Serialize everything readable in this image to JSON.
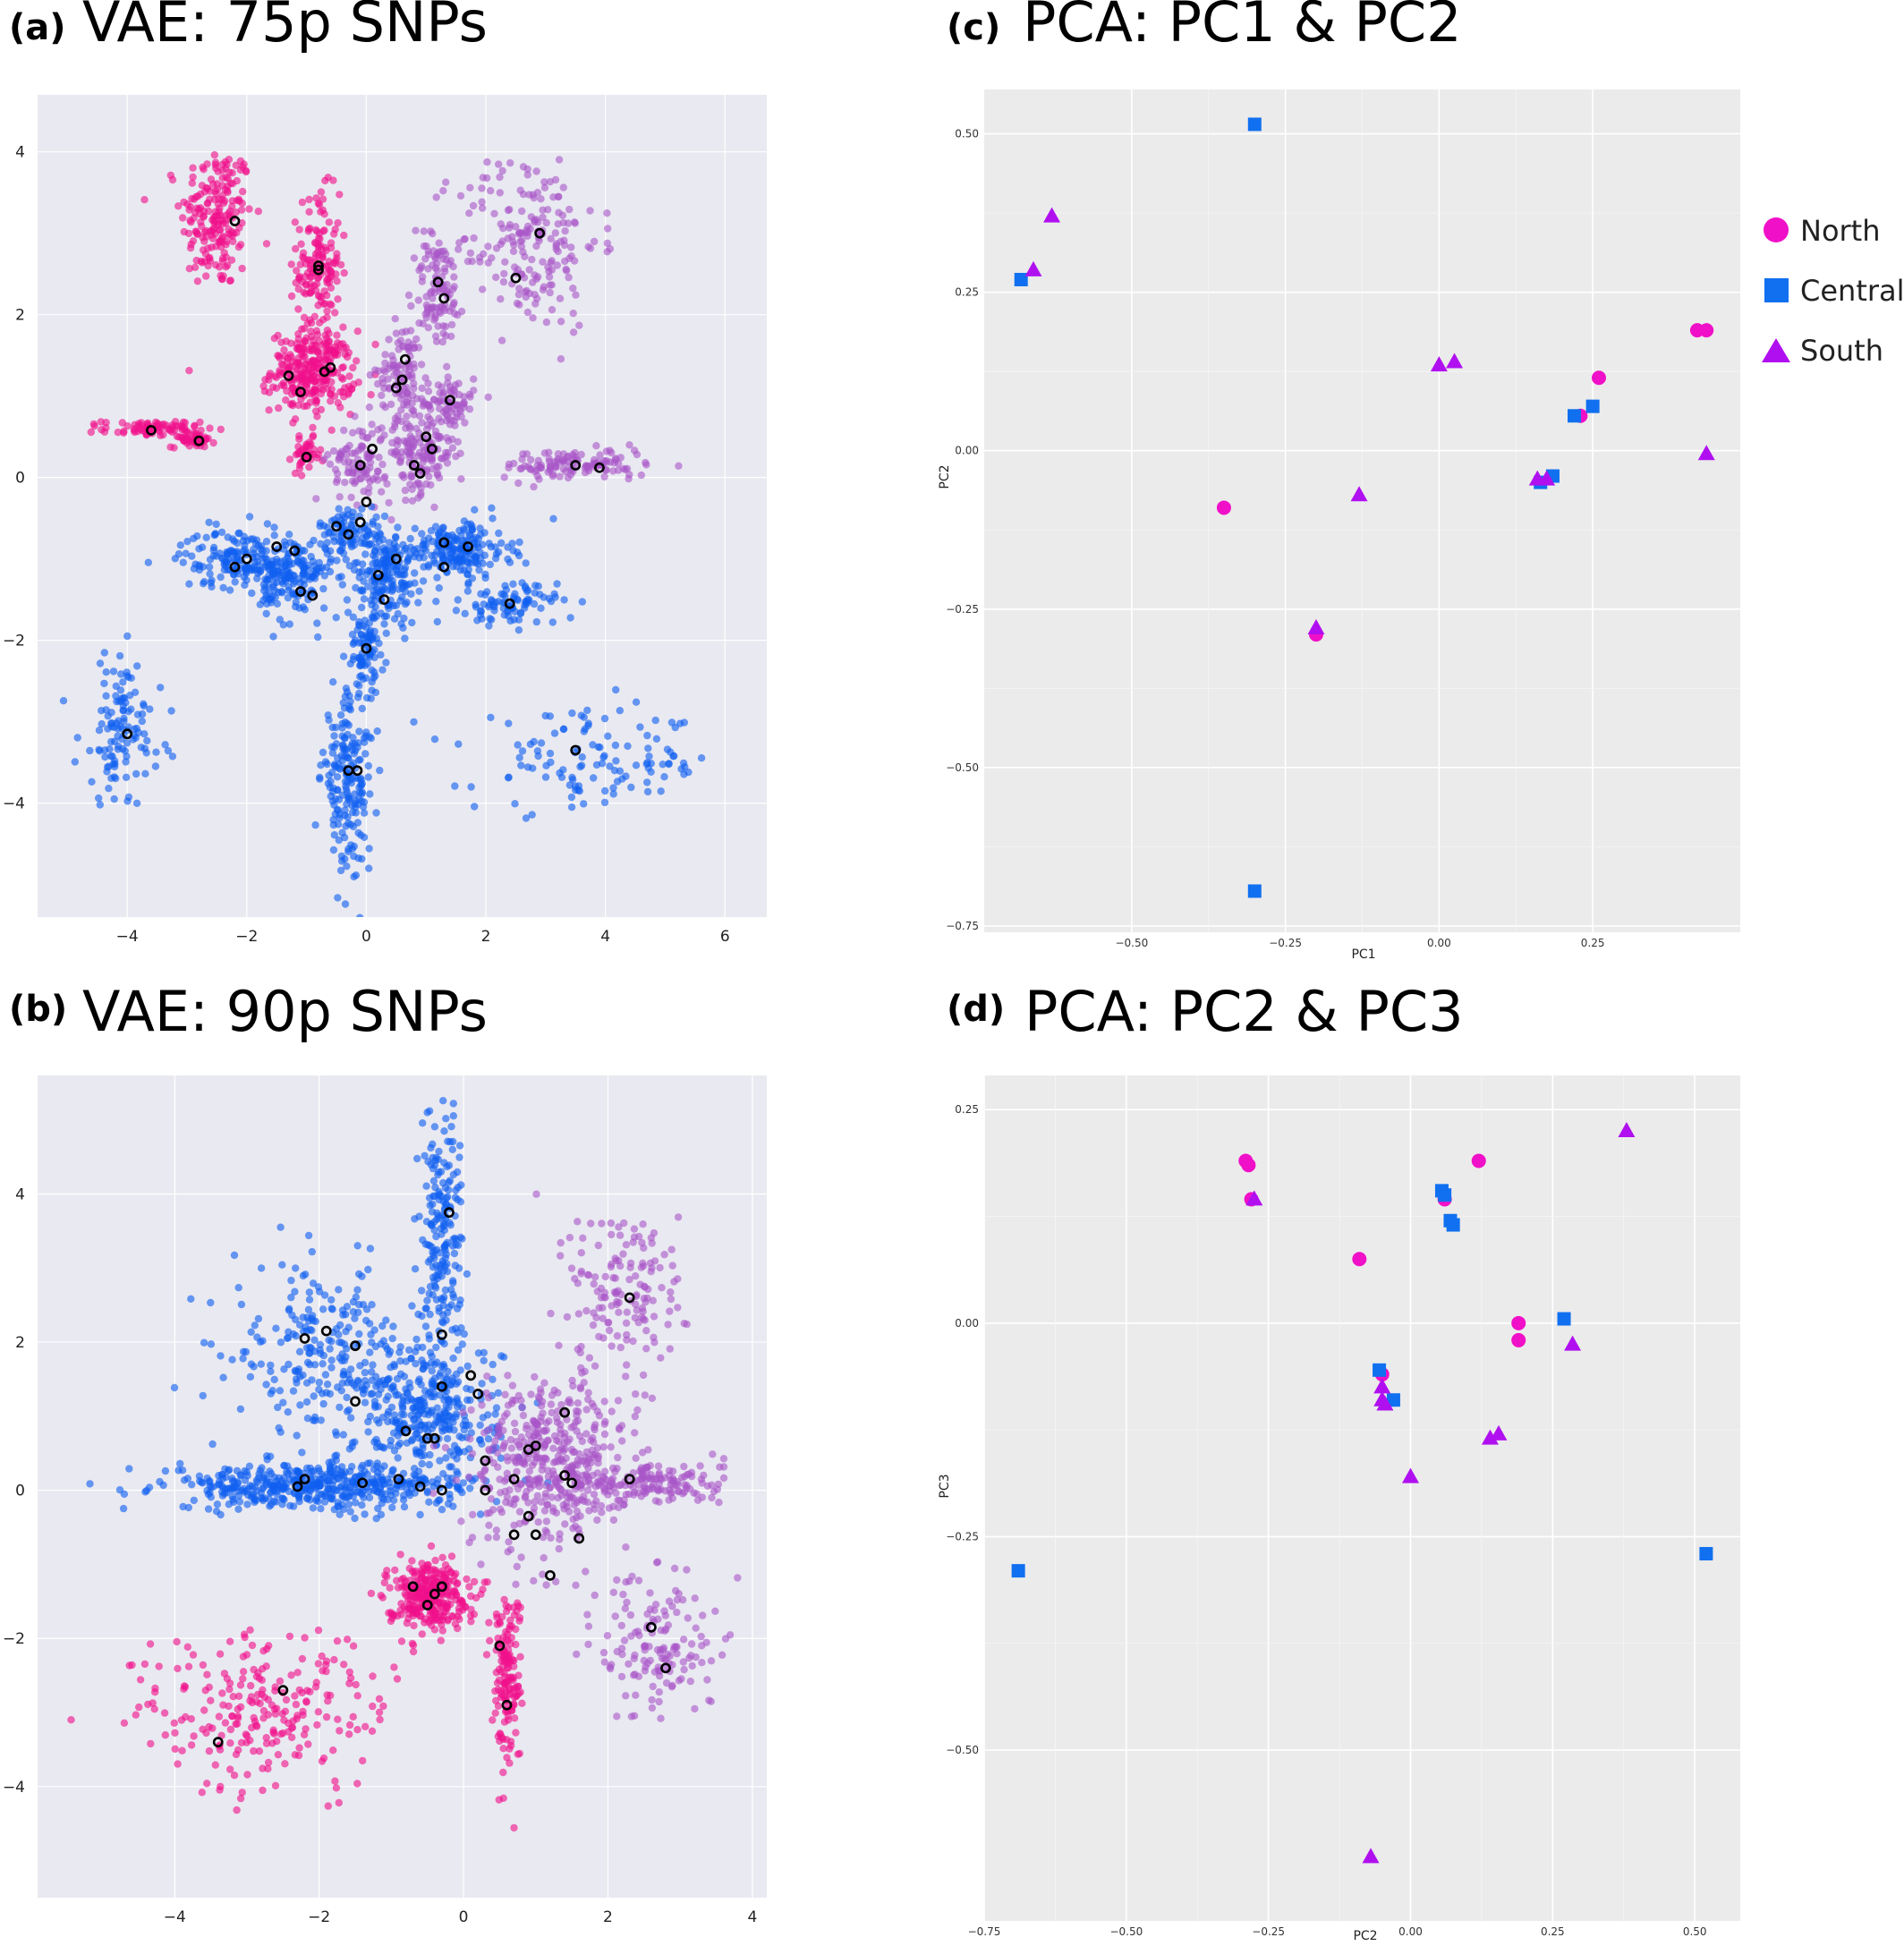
{
  "colors": {
    "north": "#f0108a",
    "central": "#1060f0",
    "south": "#a855c8",
    "north_pca": "#f010c8",
    "central_pca": "#1070f0",
    "south_pca": "#b010f0",
    "panel_bg": "#e9e9f1",
    "pca_bg": "#ebebeb",
    "grid": "#ffffff"
  },
  "legend": {
    "items": [
      {
        "label": "North",
        "shape": "circle"
      },
      {
        "label": "Central",
        "shape": "square"
      },
      {
        "label": "South",
        "shape": "triangle"
      }
    ]
  },
  "panels": {
    "a": {
      "letter": "(a)",
      "title": "VAE: 75p SNPs"
    },
    "b": {
      "letter": "(b)",
      "title": "VAE: 90p SNPs"
    },
    "c": {
      "letter": "(c)",
      "title": "PCA: PC1 & PC2",
      "xlabel": "PC1",
      "ylabel": "PC2"
    },
    "d": {
      "letter": "(d)",
      "title": "PCA: PC2 & PC3",
      "xlabel": "PC2",
      "ylabel": "PC3"
    }
  },
  "chart_data": [
    {
      "panel": "a",
      "type": "scatter",
      "title": "VAE: 75p SNPs",
      "xlim": [
        -5.5,
        6.7
      ],
      "ylim": [
        -5.4,
        4.7
      ],
      "xticks": [
        -4,
        -2,
        0,
        2,
        4,
        6
      ],
      "yticks": [
        -4,
        -2,
        0,
        2,
        4
      ],
      "grid": true,
      "clusters": [
        {
          "group": "north",
          "cx": -2.5,
          "cy": 3.2,
          "sx": 0.3,
          "sy": 0.45,
          "n": 200
        },
        {
          "group": "north",
          "cx": -0.8,
          "cy": 2.6,
          "sx": 0.18,
          "sy": 0.45,
          "n": 150
        },
        {
          "group": "north",
          "cx": -0.9,
          "cy": 1.3,
          "sx": 0.35,
          "sy": 0.25,
          "n": 280
        },
        {
          "group": "north",
          "cx": -3.6,
          "cy": 0.6,
          "sx": 0.4,
          "sy": 0.05,
          "n": 80
        },
        {
          "group": "north",
          "cx": -2.9,
          "cy": 0.47,
          "sx": 0.18,
          "sy": 0.05,
          "n": 50
        },
        {
          "group": "north",
          "cx": -1.0,
          "cy": 0.27,
          "sx": 0.12,
          "sy": 0.1,
          "n": 40
        },
        {
          "group": "south",
          "cx": 2.7,
          "cy": 2.9,
          "sx": 0.6,
          "sy": 0.55,
          "n": 200
        },
        {
          "group": "south",
          "cx": 1.2,
          "cy": 2.3,
          "sx": 0.2,
          "sy": 0.35,
          "n": 100
        },
        {
          "group": "south",
          "cx": 0.6,
          "cy": 1.3,
          "sx": 0.2,
          "sy": 0.3,
          "n": 100
        },
        {
          "group": "south",
          "cx": 1.4,
          "cy": 0.9,
          "sx": 0.2,
          "sy": 0.2,
          "n": 80
        },
        {
          "group": "south",
          "cx": 0.9,
          "cy": 0.3,
          "sx": 0.3,
          "sy": 0.25,
          "n": 140
        },
        {
          "group": "south",
          "cx": -0.1,
          "cy": 0.2,
          "sx": 0.25,
          "sy": 0.25,
          "n": 100
        },
        {
          "group": "south",
          "cx": 3.5,
          "cy": 0.15,
          "sx": 0.6,
          "sy": 0.1,
          "n": 120
        },
        {
          "group": "central",
          "cx": -2.0,
          "cy": -1.0,
          "sx": 0.55,
          "sy": 0.18,
          "n": 200
        },
        {
          "group": "central",
          "cx": -1.2,
          "cy": -1.3,
          "sx": 0.3,
          "sy": 0.25,
          "n": 120
        },
        {
          "group": "central",
          "cx": -0.3,
          "cy": -0.65,
          "sx": 0.25,
          "sy": 0.15,
          "n": 80
        },
        {
          "group": "central",
          "cx": 0.3,
          "cy": -1.2,
          "sx": 0.3,
          "sy": 0.3,
          "n": 180
        },
        {
          "group": "central",
          "cx": 1.5,
          "cy": -0.9,
          "sx": 0.45,
          "sy": 0.18,
          "n": 200
        },
        {
          "group": "central",
          "cx": 2.4,
          "cy": -1.55,
          "sx": 0.4,
          "sy": 0.13,
          "n": 90
        },
        {
          "group": "central",
          "cx": 0.0,
          "cy": -2.1,
          "sx": 0.15,
          "sy": 0.25,
          "n": 80
        },
        {
          "group": "central",
          "cx": -4.1,
          "cy": -3.1,
          "sx": 0.35,
          "sy": 0.45,
          "n": 120
        },
        {
          "group": "central",
          "cx": -0.3,
          "cy": -3.7,
          "sx": 0.22,
          "sy": 0.55,
          "n": 200
        },
        {
          "group": "central",
          "cx": 3.8,
          "cy": -3.5,
          "sx": 1.0,
          "sy": 0.3,
          "n": 120
        }
      ],
      "centroids": [
        [
          -2.2,
          3.15
        ],
        [
          -0.8,
          2.6
        ],
        [
          -0.8,
          2.55
        ],
        [
          -1.3,
          1.25
        ],
        [
          -0.6,
          1.35
        ],
        [
          -1.1,
          1.05
        ],
        [
          -0.7,
          1.3
        ],
        [
          -3.6,
          0.58
        ],
        [
          -2.8,
          0.45
        ],
        [
          -1.0,
          0.25
        ],
        [
          2.9,
          3.0
        ],
        [
          2.5,
          2.45
        ],
        [
          1.2,
          2.4
        ],
        [
          1.3,
          2.2
        ],
        [
          0.65,
          1.45
        ],
        [
          0.6,
          1.2
        ],
        [
          0.5,
          1.1
        ],
        [
          1.4,
          0.95
        ],
        [
          1.0,
          0.5
        ],
        [
          1.1,
          0.35
        ],
        [
          0.8,
          0.15
        ],
        [
          0.9,
          0.05
        ],
        [
          -0.1,
          0.15
        ],
        [
          0.1,
          0.35
        ],
        [
          3.5,
          0.15
        ],
        [
          3.9,
          0.12
        ],
        [
          0.0,
          -0.3
        ],
        [
          -0.5,
          -0.6
        ],
        [
          -0.3,
          -0.7
        ],
        [
          -0.1,
          -0.55
        ],
        [
          -1.5,
          -0.85
        ],
        [
          -1.2,
          -0.9
        ],
        [
          -2.2,
          -1.1
        ],
        [
          -2.0,
          -1.0
        ],
        [
          -1.1,
          -1.4
        ],
        [
          -0.9,
          -1.45
        ],
        [
          0.2,
          -1.2
        ],
        [
          0.5,
          -1.0
        ],
        [
          0.3,
          -1.5
        ],
        [
          1.3,
          -0.8
        ],
        [
          1.7,
          -0.85
        ],
        [
          1.3,
          -1.1
        ],
        [
          2.4,
          -1.55
        ],
        [
          0.0,
          -2.1
        ],
        [
          -4.0,
          -3.15
        ],
        [
          -0.3,
          -3.6
        ],
        [
          -0.15,
          -3.6
        ],
        [
          3.5,
          -3.35
        ]
      ]
    },
    {
      "panel": "b",
      "type": "scatter",
      "title": "VAE: 90p SNPs",
      "xlim": [
        -5.9,
        4.2
      ],
      "ylim": [
        -5.5,
        5.6
      ],
      "xticks": [
        -4,
        -2,
        0,
        2,
        4
      ],
      "yticks": [
        -4,
        -2,
        0,
        2,
        4
      ],
      "grid": true,
      "clusters": [
        {
          "group": "central",
          "cx": -2.0,
          "cy": 1.9,
          "sx": 0.6,
          "sy": 0.55,
          "n": 220
        },
        {
          "group": "central",
          "cx": -0.3,
          "cy": 3.3,
          "sx": 0.15,
          "sy": 1.0,
          "n": 220
        },
        {
          "group": "central",
          "cx": -0.5,
          "cy": 1.0,
          "sx": 0.5,
          "sy": 0.5,
          "n": 350
        },
        {
          "group": "central",
          "cx": -2.1,
          "cy": 0.05,
          "sx": 1.0,
          "sy": 0.15,
          "n": 450
        },
        {
          "group": "south",
          "cx": 1.2,
          "cy": 0.4,
          "sx": 0.55,
          "sy": 0.6,
          "n": 450
        },
        {
          "group": "south",
          "cx": 2.6,
          "cy": 0.1,
          "sx": 0.5,
          "sy": 0.15,
          "n": 150
        },
        {
          "group": "south",
          "cx": 2.3,
          "cy": 2.7,
          "sx": 0.4,
          "sy": 0.6,
          "n": 140
        },
        {
          "group": "south",
          "cx": 2.7,
          "cy": -2.1,
          "sx": 0.4,
          "sy": 0.5,
          "n": 140
        },
        {
          "group": "north",
          "cx": -0.5,
          "cy": -1.4,
          "sx": 0.28,
          "sy": 0.22,
          "n": 300
        },
        {
          "group": "north",
          "cx": 0.6,
          "cy": -2.5,
          "sx": 0.1,
          "sy": 0.6,
          "n": 150
        },
        {
          "group": "north",
          "cx": -2.8,
          "cy": -3.0,
          "sx": 0.9,
          "sy": 0.55,
          "n": 240
        }
      ],
      "centroids": [
        [
          -2.2,
          2.05
        ],
        [
          -1.9,
          2.15
        ],
        [
          -1.5,
          1.95
        ],
        [
          -1.5,
          1.2
        ],
        [
          -0.2,
          3.75
        ],
        [
          -0.3,
          2.1
        ],
        [
          -0.3,
          1.4
        ],
        [
          0.1,
          1.55
        ],
        [
          0.2,
          1.3
        ],
        [
          -0.8,
          0.8
        ],
        [
          -0.5,
          0.7
        ],
        [
          -0.4,
          0.7
        ],
        [
          -2.3,
          0.05
        ],
        [
          -2.2,
          0.15
        ],
        [
          -1.4,
          0.1
        ],
        [
          -0.9,
          0.15
        ],
        [
          -0.6,
          0.05
        ],
        [
          -0.3,
          0.0
        ],
        [
          0.3,
          0.4
        ],
        [
          0.3,
          0.0
        ],
        [
          0.7,
          0.15
        ],
        [
          0.9,
          0.55
        ],
        [
          1.0,
          0.6
        ],
        [
          1.4,
          1.05
        ],
        [
          1.4,
          0.2
        ],
        [
          1.5,
          0.1
        ],
        [
          0.9,
          -0.35
        ],
        [
          1.0,
          -0.6
        ],
        [
          0.7,
          -0.6
        ],
        [
          1.6,
          -0.65
        ],
        [
          1.2,
          -1.15
        ],
        [
          2.3,
          0.15
        ],
        [
          2.3,
          2.6
        ],
        [
          -0.7,
          -1.3
        ],
        [
          -0.4,
          -1.4
        ],
        [
          -0.3,
          -1.3
        ],
        [
          -0.5,
          -1.55
        ],
        [
          0.5,
          -2.1
        ],
        [
          0.6,
          -2.9
        ],
        [
          -2.5,
          -2.7
        ],
        [
          -3.4,
          -3.4
        ],
        [
          2.6,
          -1.85
        ],
        [
          2.8,
          -2.4
        ]
      ]
    },
    {
      "panel": "c",
      "type": "scatter",
      "title": "PCA: PC1 & PC2",
      "xlabel": "PC1",
      "ylabel": "PC2",
      "xlim": [
        -0.74,
        0.49
      ],
      "ylim": [
        -0.76,
        0.57
      ],
      "xticks": [
        -0.5,
        -0.25,
        0.0,
        0.25
      ],
      "yticks": [
        0.5,
        0.25,
        0.0,
        -0.25,
        -0.5,
        -0.75
      ],
      "series": [
        {
          "name": "North",
          "points": [
            [
              -0.35,
              -0.09
            ],
            [
              -0.2,
              -0.29
            ],
            [
              0.23,
              0.055
            ],
            [
              0.26,
              0.115
            ],
            [
              0.42,
              0.19
            ],
            [
              0.435,
              0.19
            ]
          ]
        },
        {
          "name": "Central",
          "points": [
            [
              -0.3,
              0.515
            ],
            [
              -0.68,
              0.27
            ],
            [
              -0.3,
              -0.695
            ],
            [
              0.22,
              0.055
            ],
            [
              0.25,
              0.07
            ],
            [
              0.165,
              -0.05
            ],
            [
              0.185,
              -0.04
            ]
          ]
        },
        {
          "name": "South",
          "points": [
            [
              -0.63,
              0.37
            ],
            [
              -0.66,
              0.285
            ],
            [
              0.0,
              0.135
            ],
            [
              0.025,
              0.14
            ],
            [
              -0.13,
              -0.07
            ],
            [
              -0.2,
              -0.28
            ],
            [
              0.435,
              -0.005
            ],
            [
              0.16,
              -0.045
            ],
            [
              0.175,
              -0.045
            ]
          ]
        }
      ]
    },
    {
      "panel": "d",
      "type": "scatter",
      "title": "PCA: PC2 & PC3",
      "xlabel": "PC2",
      "ylabel": "PC3",
      "xlim": [
        -0.75,
        0.58
      ],
      "ylim": [
        -0.7,
        0.29
      ],
      "xticks": [
        -0.75,
        -0.5,
        -0.25,
        0.0,
        0.25,
        0.5
      ],
      "yticks": [
        0.25,
        0.0,
        -0.25,
        -0.5
      ],
      "series": [
        {
          "name": "North",
          "points": [
            [
              -0.29,
              0.19
            ],
            [
              -0.285,
              0.185
            ],
            [
              -0.28,
              0.145
            ],
            [
              -0.09,
              0.075
            ],
            [
              0.06,
              0.145
            ],
            [
              0.12,
              0.19
            ],
            [
              0.19,
              0.0
            ],
            [
              0.19,
              -0.02
            ],
            [
              -0.05,
              -0.06
            ]
          ]
        },
        {
          "name": "Central",
          "points": [
            [
              0.055,
              0.155
            ],
            [
              0.06,
              0.15
            ],
            [
              0.07,
              0.12
            ],
            [
              0.075,
              0.115
            ],
            [
              0.27,
              0.005
            ],
            [
              -0.055,
              -0.055
            ],
            [
              -0.03,
              -0.09
            ],
            [
              -0.69,
              -0.29
            ],
            [
              0.52,
              -0.27
            ]
          ]
        },
        {
          "name": "South",
          "points": [
            [
              -0.275,
              0.145
            ],
            [
              0.38,
              0.225
            ],
            [
              0.285,
              -0.025
            ],
            [
              -0.05,
              -0.075
            ],
            [
              -0.05,
              -0.09
            ],
            [
              -0.045,
              -0.095
            ],
            [
              0.14,
              -0.135
            ],
            [
              0.155,
              -0.13
            ],
            [
              0.0,
              -0.18
            ],
            [
              -0.07,
              -0.625
            ]
          ]
        }
      ]
    }
  ]
}
